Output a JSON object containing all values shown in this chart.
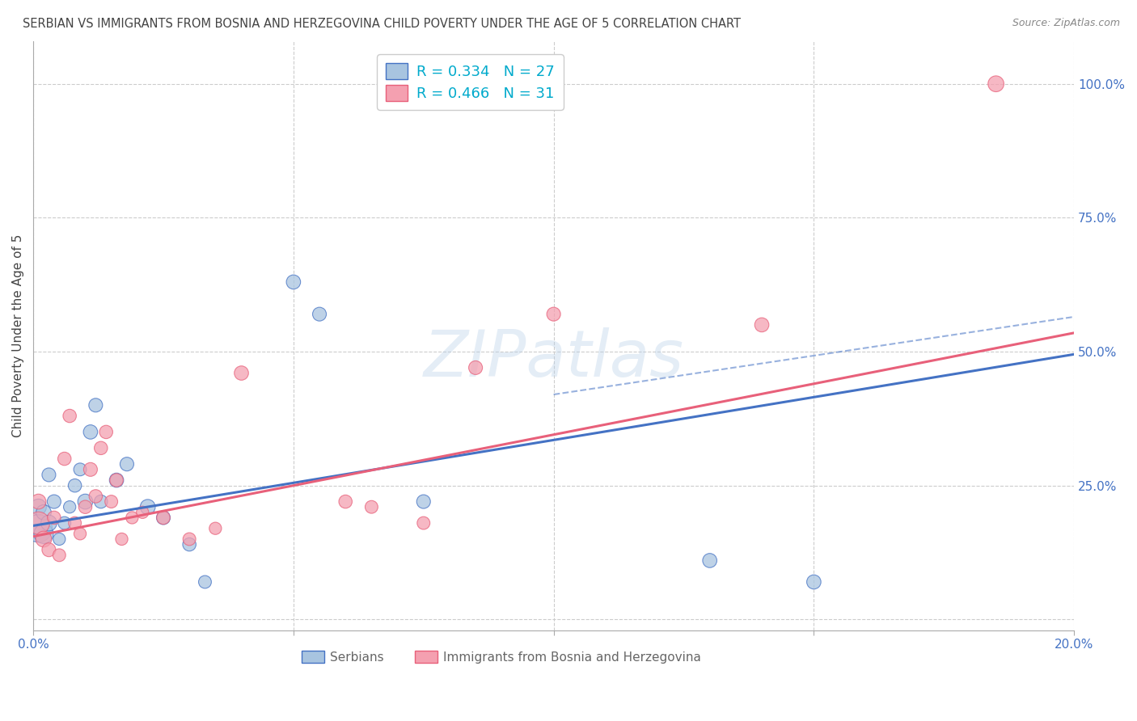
{
  "title": "SERBIAN VS IMMIGRANTS FROM BOSNIA AND HERZEGOVINA CHILD POVERTY UNDER THE AGE OF 5 CORRELATION CHART",
  "source": "Source: ZipAtlas.com",
  "ylabel": "Child Poverty Under the Age of 5",
  "xlim": [
    0.0,
    0.2
  ],
  "ylim": [
    -0.02,
    1.08
  ],
  "xticks": [
    0.0,
    0.05,
    0.1,
    0.15,
    0.2
  ],
  "xticklabels": [
    "0.0%",
    "",
    "",
    "",
    "20.0%"
  ],
  "yticks_right": [
    0.0,
    0.25,
    0.5,
    0.75,
    1.0
  ],
  "yticklabels_right": [
    "",
    "25.0%",
    "50.0%",
    "75.0%",
    "100.0%"
  ],
  "serbian_color": "#a8c4e0",
  "bosnian_color": "#f4a0b0",
  "serbian_edge_color": "#4472C4",
  "bosnian_edge_color": "#E8607A",
  "serbian_line_color": "#4472C4",
  "bosnian_line_color": "#E8607A",
  "legend_line1": "R = 0.334   N = 27",
  "legend_line2": "R = 0.466   N = 31",
  "legend1_label": "Serbians",
  "legend2_label": "Immigrants from Bosnia and Herzegovina",
  "watermark": "ZIPatlas",
  "serbian_x": [
    0.001,
    0.001,
    0.002,
    0.002,
    0.003,
    0.003,
    0.004,
    0.005,
    0.006,
    0.007,
    0.008,
    0.009,
    0.01,
    0.011,
    0.012,
    0.013,
    0.016,
    0.018,
    0.022,
    0.025,
    0.03,
    0.033,
    0.05,
    0.055,
    0.075,
    0.13,
    0.15
  ],
  "serbian_y": [
    0.17,
    0.21,
    0.16,
    0.2,
    0.18,
    0.27,
    0.22,
    0.15,
    0.18,
    0.21,
    0.25,
    0.28,
    0.22,
    0.35,
    0.4,
    0.22,
    0.26,
    0.29,
    0.21,
    0.19,
    0.14,
    0.07,
    0.63,
    0.57,
    0.22,
    0.11,
    0.07
  ],
  "serbian_sizes": [
    600,
    200,
    300,
    180,
    200,
    150,
    150,
    120,
    130,
    120,
    140,
    130,
    180,
    160,
    150,
    140,
    160,
    150,
    180,
    150,
    140,
    130,
    160,
    150,
    150,
    160,
    160
  ],
  "bosnian_x": [
    0.001,
    0.001,
    0.002,
    0.003,
    0.004,
    0.005,
    0.006,
    0.007,
    0.008,
    0.009,
    0.01,
    0.011,
    0.012,
    0.013,
    0.014,
    0.015,
    0.016,
    0.017,
    0.019,
    0.021,
    0.025,
    0.03,
    0.035,
    0.04,
    0.06,
    0.065,
    0.075,
    0.085,
    0.1,
    0.14,
    0.185
  ],
  "bosnian_y": [
    0.18,
    0.22,
    0.15,
    0.13,
    0.19,
    0.12,
    0.3,
    0.38,
    0.18,
    0.16,
    0.21,
    0.28,
    0.23,
    0.32,
    0.35,
    0.22,
    0.26,
    0.15,
    0.19,
    0.2,
    0.19,
    0.15,
    0.17,
    0.46,
    0.22,
    0.21,
    0.18,
    0.47,
    0.57,
    0.55,
    1.0
  ],
  "bosnian_sizes": [
    400,
    180,
    200,
    150,
    140,
    130,
    140,
    140,
    130,
    120,
    140,
    150,
    140,
    140,
    140,
    130,
    140,
    120,
    120,
    120,
    140,
    130,
    120,
    160,
    140,
    130,
    130,
    150,
    150,
    160,
    200
  ],
  "serbian_line_x0": 0.0,
  "serbian_line_x1": 0.2,
  "serbian_line_y0": 0.175,
  "serbian_line_y1": 0.495,
  "bosnian_line_x0": 0.0,
  "bosnian_line_x1": 0.2,
  "bosnian_line_y0": 0.155,
  "bosnian_line_y1": 0.535,
  "dashed_line_x0": 0.1,
  "dashed_line_x1": 0.2,
  "dashed_line_y0": 0.42,
  "dashed_line_y1": 0.565,
  "grid_color": "#cccccc",
  "background_color": "#ffffff",
  "title_color": "#444444",
  "axis_label_color": "#444444",
  "tick_color": "#4472C4",
  "legend_text_color": "#00aacc"
}
